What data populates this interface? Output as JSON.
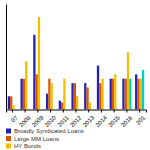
{
  "chart_data": {
    "type": "bar",
    "categories": [
      "07",
      "2008",
      "2009",
      "2010",
      "2011",
      "2012",
      "2013",
      "2014",
      "2015",
      "2016",
      "201"
    ],
    "series": [
      {
        "name": "Broadly Syndicated Loans",
        "color": "#2222bb",
        "values": [
          1.5,
          3.5,
          8.5,
          1.8,
          1.0,
          3.0,
          3.0,
          5.0,
          3.5,
          3.5,
          4.0
        ]
      },
      {
        "name": "Large MM Loans",
        "color": "#dd5500",
        "values": [
          1.5,
          3.5,
          4.0,
          3.5,
          0.8,
          3.0,
          2.5,
          3.0,
          3.5,
          3.5,
          3.5
        ]
      },
      {
        "name": "HY Bonds",
        "color": "#f0c000",
        "values": [
          0.5,
          5.5,
          10.5,
          3.0,
          3.5,
          1.5,
          0.8,
          3.5,
          4.0,
          6.5,
          3.5
        ]
      },
      {
        "color": "#00cccc",
        "values": [
          0.0,
          0.0,
          0.0,
          0.0,
          0.0,
          0.0,
          0.0,
          0.0,
          0.0,
          3.5,
          4.5
        ]
      }
    ],
    "ylim": [
      0,
      12
    ],
    "grid": false,
    "legend": "bottom",
    "tick_labels": "x"
  }
}
